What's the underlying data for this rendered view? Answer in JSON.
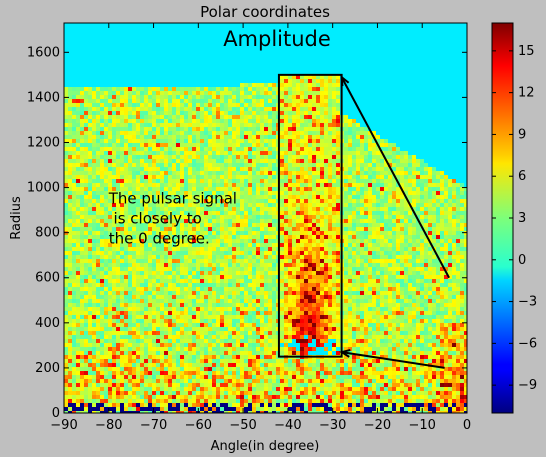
{
  "chart_data": {
    "type": "heatmap",
    "title": "Polar coordinates",
    "inner_title": "Amplitude",
    "xlabel": "Angle(in degree)",
    "ylabel": "Radius",
    "xlim": [
      -90,
      0
    ],
    "ylim": [
      0,
      1730
    ],
    "x_ticks": [
      -90,
      -80,
      -70,
      -60,
      -50,
      -40,
      -30,
      -20,
      -10,
      0
    ],
    "y_ticks": [
      0,
      200,
      400,
      600,
      800,
      1000,
      1200,
      1400,
      1600
    ],
    "colorbar": {
      "colormap": "jet",
      "range": [
        -11,
        17
      ],
      "ticks": [
        -9,
        -6,
        -3,
        0,
        3,
        6,
        9,
        12,
        15
      ],
      "background_value": -1
    },
    "annotation": {
      "lines": [
        "The pulsar signal",
        " is closely to",
        "the 0 degree."
      ],
      "anchor": [
        -80,
        930
      ]
    },
    "highlight_box": {
      "x": [
        -42,
        -28
      ],
      "y": [
        250,
        1500
      ]
    },
    "arrows": [
      {
        "from": [
          -4,
          600
        ],
        "to": [
          -28,
          1490
        ]
      },
      {
        "from": [
          -5,
          200
        ],
        "to": [
          -28,
          270
        ]
      }
    ],
    "grid": false
  }
}
